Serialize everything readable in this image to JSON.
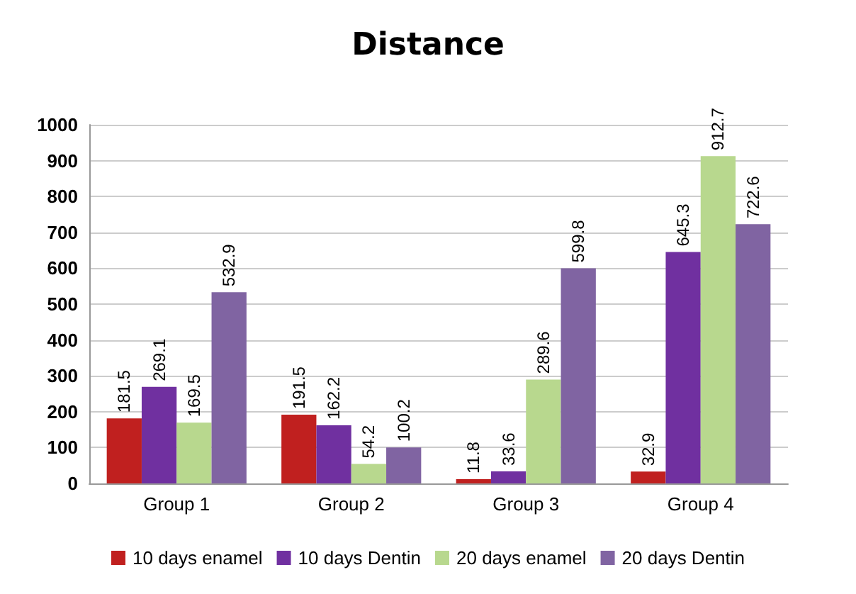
{
  "chart_data": {
    "type": "bar",
    "title": "Distance",
    "categories": [
      "Group 1",
      "Group 2",
      "Group 3",
      "Group 4"
    ],
    "series": [
      {
        "name": "10 days enamel",
        "color": "#c0201f",
        "values": [
          181.5,
          191.5,
          11.8,
          32.9
        ]
      },
      {
        "name": "10 days Dentin",
        "color": "#7030a0",
        "values": [
          269.1,
          162.2,
          33.6,
          645.3
        ]
      },
      {
        "name": "20 days enamel",
        "color": "#b8d88e",
        "values": [
          169.5,
          54.2,
          289.6,
          912.7
        ]
      },
      {
        "name": "20 days Dentin",
        "color": "#8064a2",
        "values": [
          532.9,
          100.2,
          599.8,
          722.6
        ]
      }
    ],
    "ylim": [
      0,
      1000
    ],
    "yticks": [
      0,
      100,
      200,
      300,
      400,
      500,
      600,
      700,
      800,
      900,
      1000
    ],
    "grid": "y",
    "legend": "bottom",
    "data_labels": true
  }
}
